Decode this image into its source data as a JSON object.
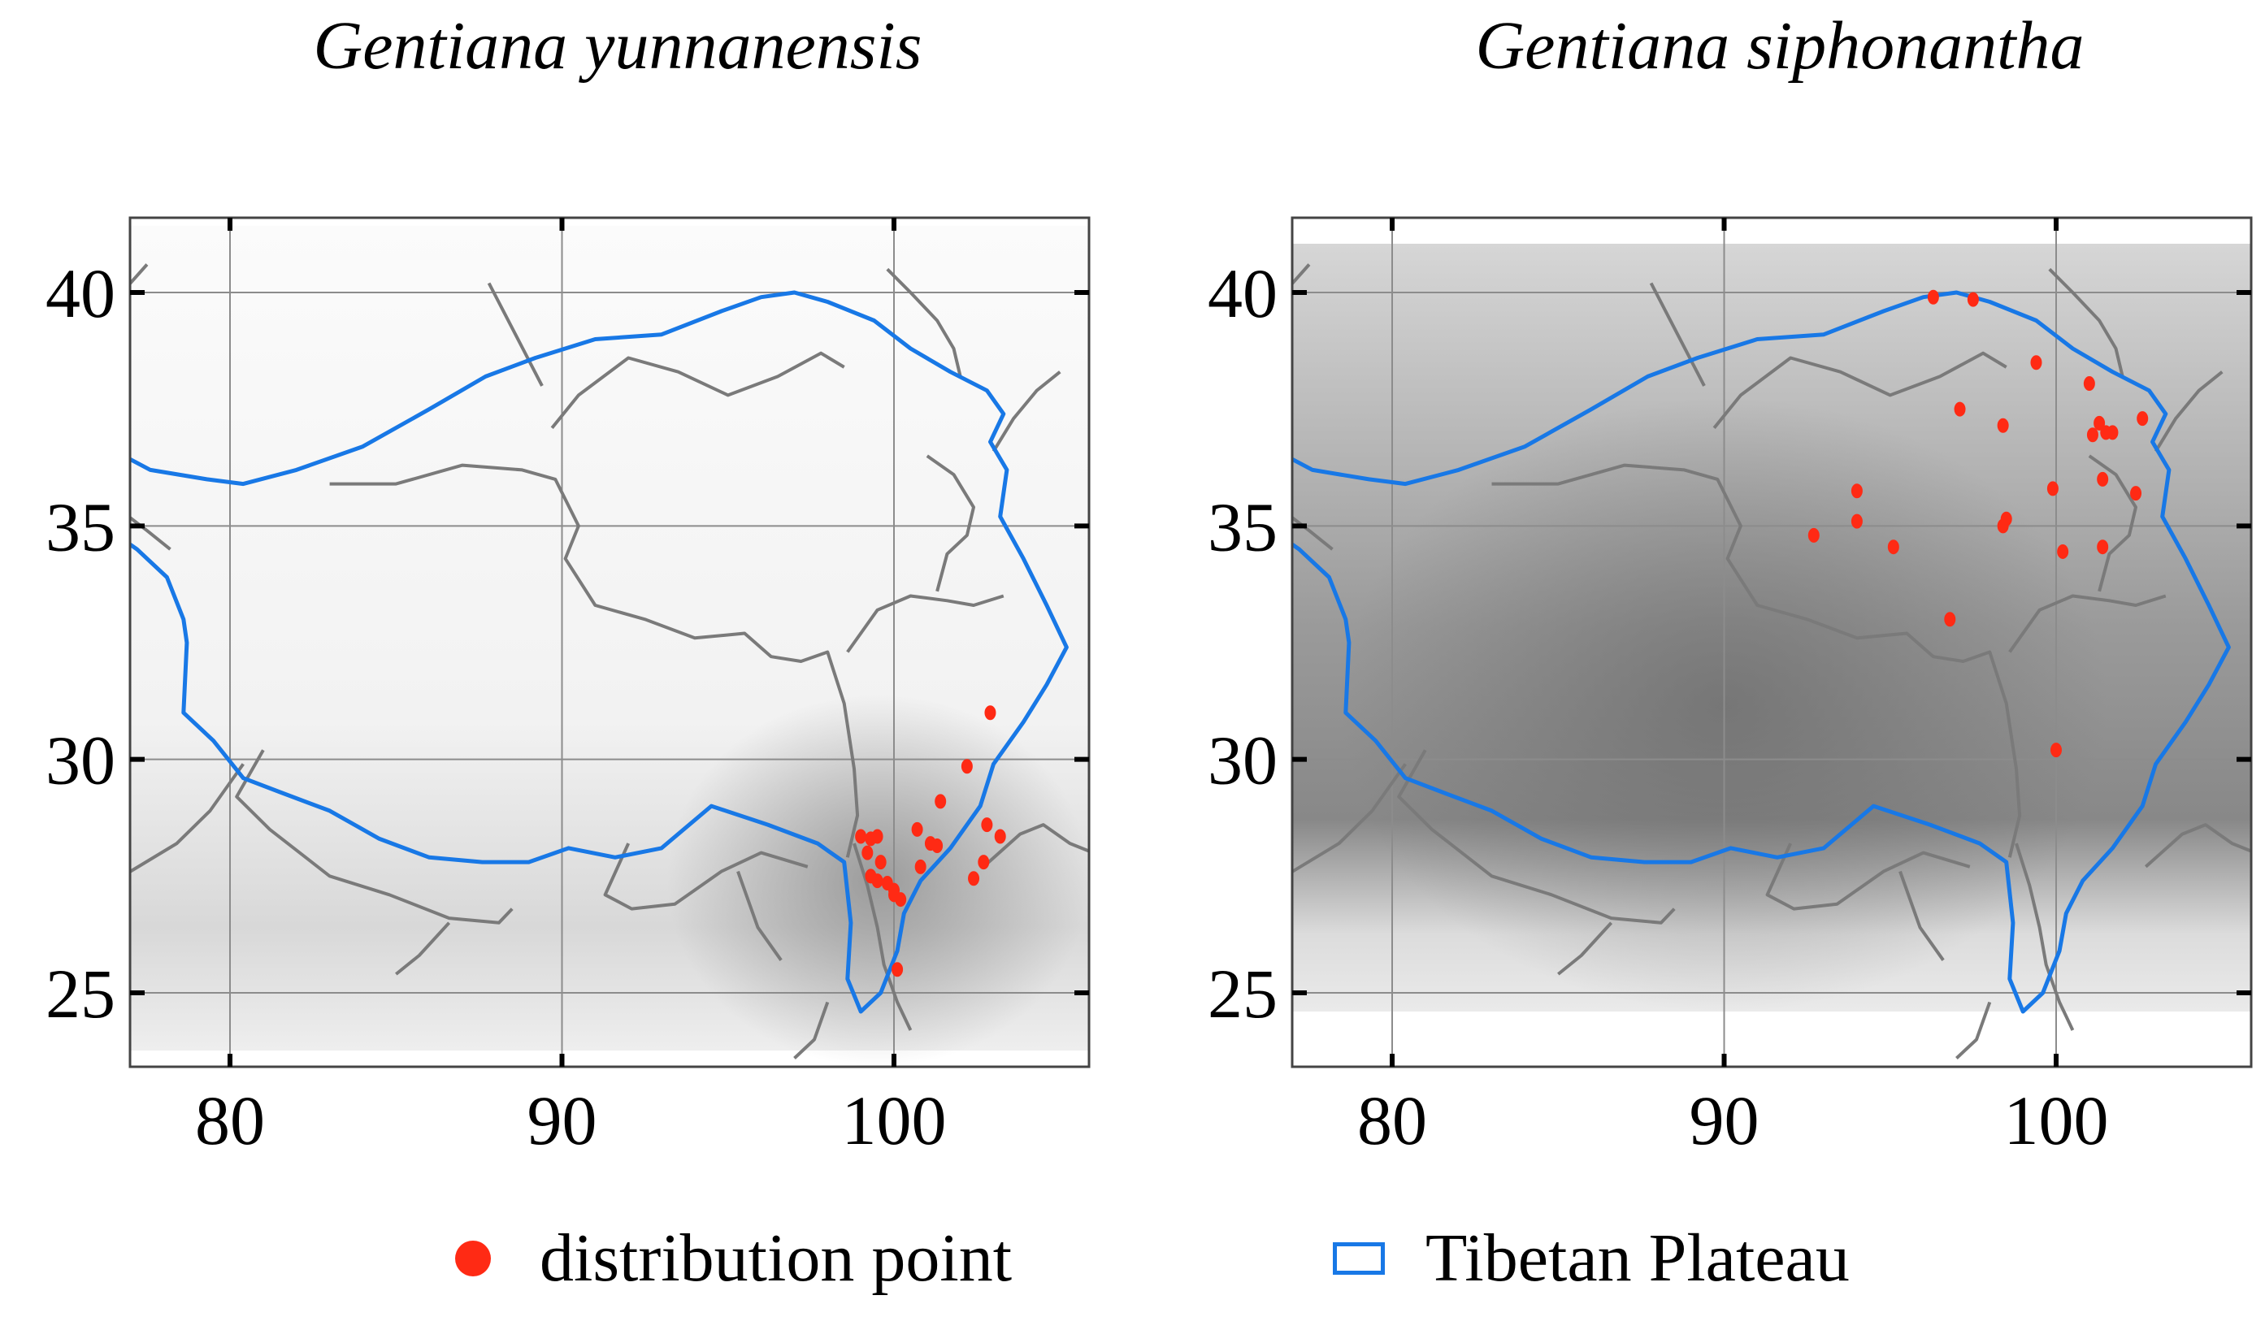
{
  "panels": [
    {
      "title": "Gentiana yunnanensis",
      "background": "light",
      "x_ticks": [
        "80",
        "90",
        "100"
      ],
      "y_ticks": [
        "40",
        "35",
        "30",
        "25"
      ],
      "points": [
        [
          102.9,
          31.0
        ],
        [
          102.2,
          29.85
        ],
        [
          101.4,
          29.1
        ],
        [
          99.0,
          28.35
        ],
        [
          99.3,
          28.3
        ],
        [
          99.5,
          28.35
        ],
        [
          100.7,
          28.5
        ],
        [
          101.1,
          28.2
        ],
        [
          101.3,
          28.15
        ],
        [
          102.8,
          28.6
        ],
        [
          103.2,
          28.35
        ],
        [
          99.2,
          28.0
        ],
        [
          99.6,
          27.8
        ],
        [
          100.8,
          27.7
        ],
        [
          102.7,
          27.8
        ],
        [
          99.3,
          27.5
        ],
        [
          99.5,
          27.4
        ],
        [
          99.8,
          27.35
        ],
        [
          100.0,
          27.2
        ],
        [
          100.2,
          27.0
        ],
        [
          100.0,
          27.1
        ],
        [
          102.4,
          27.45
        ],
        [
          100.1,
          25.5
        ]
      ]
    },
    {
      "title": "Gentiana siphonantha",
      "background": "dark",
      "x_ticks": [
        "80",
        "90",
        "100"
      ],
      "y_ticks": [
        "40",
        "35",
        "30",
        "25"
      ],
      "points": [
        [
          96.3,
          39.9
        ],
        [
          97.5,
          39.85
        ],
        [
          99.4,
          38.5
        ],
        [
          101.0,
          38.05
        ],
        [
          97.1,
          37.5
        ],
        [
          98.4,
          37.15
        ],
        [
          101.3,
          37.2
        ],
        [
          101.5,
          37.0
        ],
        [
          101.1,
          36.95
        ],
        [
          102.6,
          37.3
        ],
        [
          101.7,
          37.0
        ],
        [
          101.4,
          36.0
        ],
        [
          99.9,
          35.8
        ],
        [
          102.4,
          35.7
        ],
        [
          94.0,
          35.75
        ],
        [
          94.0,
          35.1
        ],
        [
          98.5,
          35.15
        ],
        [
          98.4,
          35.0
        ],
        [
          92.7,
          34.8
        ],
        [
          95.1,
          34.55
        ],
        [
          100.2,
          34.45
        ],
        [
          101.4,
          34.55
        ],
        [
          96.8,
          33.0
        ],
        [
          100.0,
          30.2
        ]
      ]
    }
  ],
  "legend": {
    "points_label": "distribution point",
    "plateau_label": "Tibetan Plateau"
  },
  "colors": {
    "points": "#ff2a14",
    "plateau": "#1878e6",
    "borders": "#7a7a7a"
  }
}
